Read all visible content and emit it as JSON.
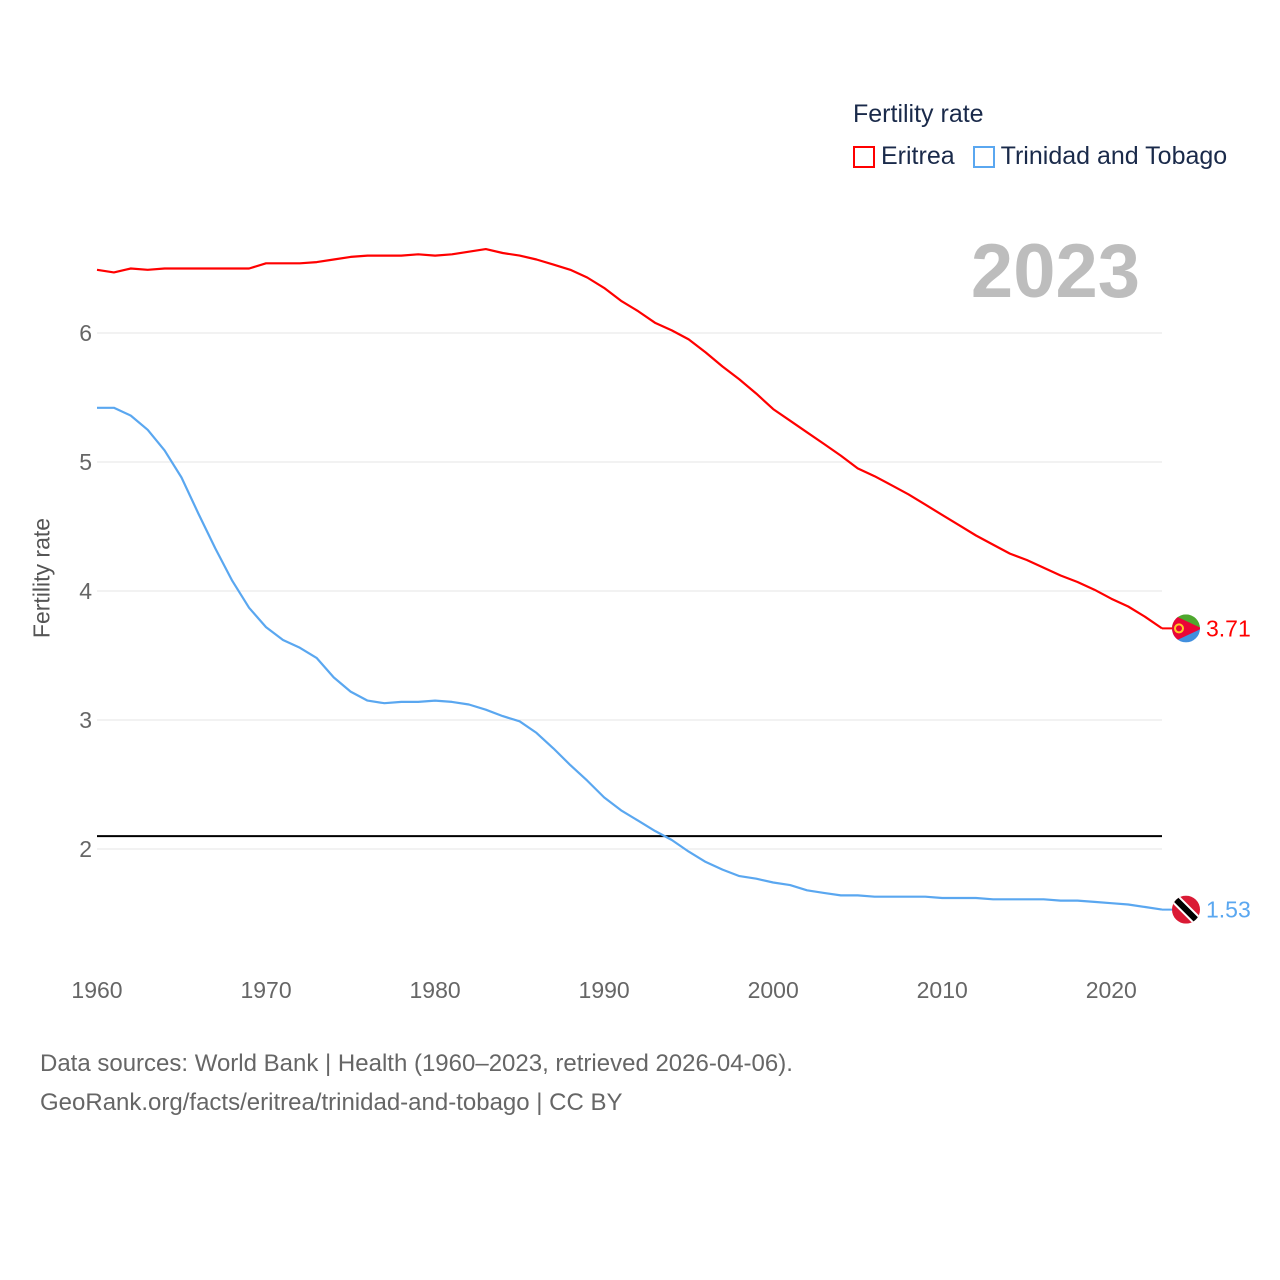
{
  "chart_data": {
    "type": "line",
    "title": "Fertility rate",
    "xlabel": "",
    "ylabel": "Fertility rate",
    "xlim": [
      1960,
      2023
    ],
    "ylim": [
      1.1,
      6.9
    ],
    "x_ticks": [
      1960,
      1970,
      1980,
      1990,
      2000,
      2010,
      2020
    ],
    "y_ticks": [
      2,
      3,
      4,
      5,
      6
    ],
    "grid": true,
    "legend_position": "top-right",
    "reference_line": 2.1,
    "current_year_label": "2023",
    "x": [
      1960,
      1961,
      1962,
      1963,
      1964,
      1965,
      1966,
      1967,
      1968,
      1969,
      1970,
      1971,
      1972,
      1973,
      1974,
      1975,
      1976,
      1977,
      1978,
      1979,
      1980,
      1981,
      1982,
      1983,
      1984,
      1985,
      1986,
      1987,
      1988,
      1989,
      1990,
      1991,
      1992,
      1993,
      1994,
      1995,
      1996,
      1997,
      1998,
      1999,
      2000,
      2001,
      2002,
      2003,
      2004,
      2005,
      2006,
      2007,
      2008,
      2009,
      2010,
      2011,
      2012,
      2013,
      2014,
      2015,
      2016,
      2017,
      2018,
      2019,
      2020,
      2021,
      2022,
      2023
    ],
    "series": [
      {
        "name": "Eritrea",
        "color": "#ff0000",
        "end_label": "3.71",
        "values": [
          6.49,
          6.47,
          6.5,
          6.49,
          6.5,
          6.5,
          6.5,
          6.5,
          6.5,
          6.5,
          6.54,
          6.54,
          6.54,
          6.55,
          6.57,
          6.59,
          6.6,
          6.6,
          6.6,
          6.61,
          6.6,
          6.61,
          6.63,
          6.65,
          6.62,
          6.6,
          6.57,
          6.53,
          6.49,
          6.43,
          6.35,
          6.25,
          6.17,
          6.08,
          6.02,
          5.95,
          5.85,
          5.74,
          5.64,
          5.53,
          5.41,
          5.32,
          5.23,
          5.14,
          5.05,
          4.95,
          4.89,
          4.82,
          4.75,
          4.67,
          4.59,
          4.51,
          4.43,
          4.36,
          4.29,
          4.24,
          4.18,
          4.12,
          4.07,
          4.01,
          3.94,
          3.88,
          3.8,
          3.71
        ]
      },
      {
        "name": "Trinidad and Tobago",
        "color": "#5aa7f0",
        "end_label": "1.53",
        "values": [
          5.42,
          5.42,
          5.36,
          5.25,
          5.09,
          4.88,
          4.6,
          4.33,
          4.08,
          3.87,
          3.72,
          3.62,
          3.56,
          3.48,
          3.33,
          3.22,
          3.15,
          3.13,
          3.14,
          3.14,
          3.15,
          3.14,
          3.12,
          3.08,
          3.03,
          2.99,
          2.9,
          2.78,
          2.65,
          2.53,
          2.4,
          2.3,
          2.22,
          2.14,
          2.07,
          1.98,
          1.9,
          1.84,
          1.79,
          1.77,
          1.74,
          1.72,
          1.68,
          1.66,
          1.64,
          1.64,
          1.63,
          1.63,
          1.63,
          1.63,
          1.62,
          1.62,
          1.62,
          1.61,
          1.61,
          1.61,
          1.61,
          1.6,
          1.6,
          1.59,
          1.58,
          1.57,
          1.55,
          1.53
        ]
      }
    ]
  },
  "source": {
    "line1": "Data sources: World Bank | Health (1960–2023, retrieved 2026-04-06).",
    "line2": "GeoRank.org/facts/eritrea/trinidad-and-tobago | CC BY"
  }
}
